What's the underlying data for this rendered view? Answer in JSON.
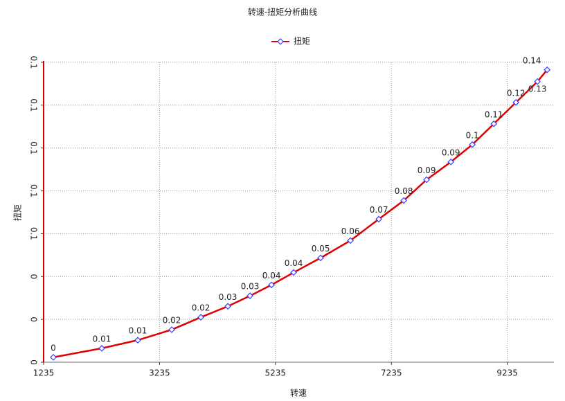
{
  "chart_data": {
    "type": "line",
    "title": "转速-扭矩分析曲线",
    "x_label": "转速",
    "y_label": "扭矩",
    "x": [
      1402,
      2239,
      2860,
      3446,
      3948,
      4414,
      4796,
      5167,
      5549,
      6015,
      6529,
      7019,
      7449,
      7843,
      8262,
      8632,
      9003,
      9385,
      9755,
      9923
    ],
    "series": [
      {
        "name": "扭矩",
        "color": "#e00000",
        "marker_color": "#3a3aff",
        "values": [
          0.0023,
          0.0065,
          0.0103,
          0.0152,
          0.021,
          0.0261,
          0.031,
          0.0361,
          0.0419,
          0.0487,
          0.0568,
          0.0668,
          0.0755,
          0.0852,
          0.0935,
          0.1016,
          0.1113,
          0.1213,
          0.131,
          0.1365
        ],
        "value_labels": [
          "0",
          "0.01",
          "0.01",
          "0.02",
          "0.02",
          "0.03",
          "0.03",
          "0.04",
          "0.04",
          "0.05",
          "0.06",
          "0.07",
          "0.08",
          "0.09",
          "0.09",
          "0.1",
          "0.11",
          "0.12",
          "0.13",
          "0.14"
        ]
      }
    ],
    "xlim": [
      1235,
      10040
    ],
    "xticks": [
      1235,
      3235,
      5235,
      7235,
      9235
    ],
    "ylim": [
      0,
      0.14
    ],
    "yticks": [
      0,
      {
        "value": 0.02,
        "label": "0"
      },
      {
        "value": 0.04,
        "label": "0"
      },
      {
        "value": 0.06,
        "label": "0.1"
      },
      {
        "value": 0.08,
        "label": "0.1"
      },
      0.1,
      {
        "value": 0.12,
        "label": "0.1"
      },
      {
        "value": 0.14,
        "label": "0.1"
      }
    ],
    "grid": true
  }
}
